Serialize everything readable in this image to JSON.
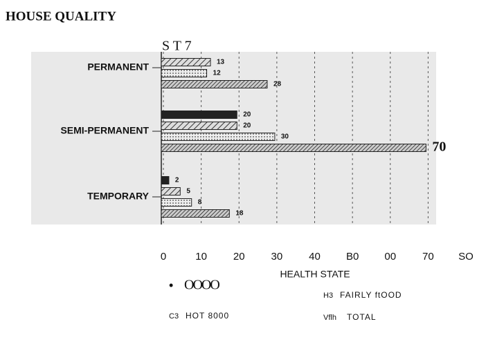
{
  "chart_data": {
    "type": "bar",
    "orientation": "horizontal",
    "title": "HOUSE QUALITY",
    "subtitle": "S T 7",
    "xlabel": "HEALTH STATE",
    "categories": [
      "PERMANENT",
      "SEMI-PERMANENT",
      "TEMPORARY"
    ],
    "series": [
      {
        "name": "OOOO",
        "legend_marker": "•",
        "color": "#222222",
        "pattern": "solid",
        "values": [
          null,
          20,
          2
        ]
      },
      {
        "name": "FAIRLY ftOOD",
        "legend_marker": "H3",
        "color": "#333333",
        "pattern": "hatch",
        "values": [
          13,
          20,
          5
        ]
      },
      {
        "name": "HOT 8000",
        "legend_marker": "C3",
        "color": "#555555",
        "pattern": "dots",
        "values": [
          12,
          30,
          8
        ]
      },
      {
        "name": "TOTAL",
        "legend_marker": "Vflh",
        "color": "#333333",
        "pattern": "hatch-dense",
        "values": [
          28,
          70,
          18
        ]
      }
    ],
    "xlim": [
      0,
      80
    ],
    "xticks": [
      0,
      10,
      20,
      30,
      40,
      {
        "value": 50,
        "label": "B0"
      },
      {
        "value": 60,
        "label": "00"
      },
      70,
      {
        "value": 80,
        "label": "SO"
      }
    ],
    "grid": true
  }
}
